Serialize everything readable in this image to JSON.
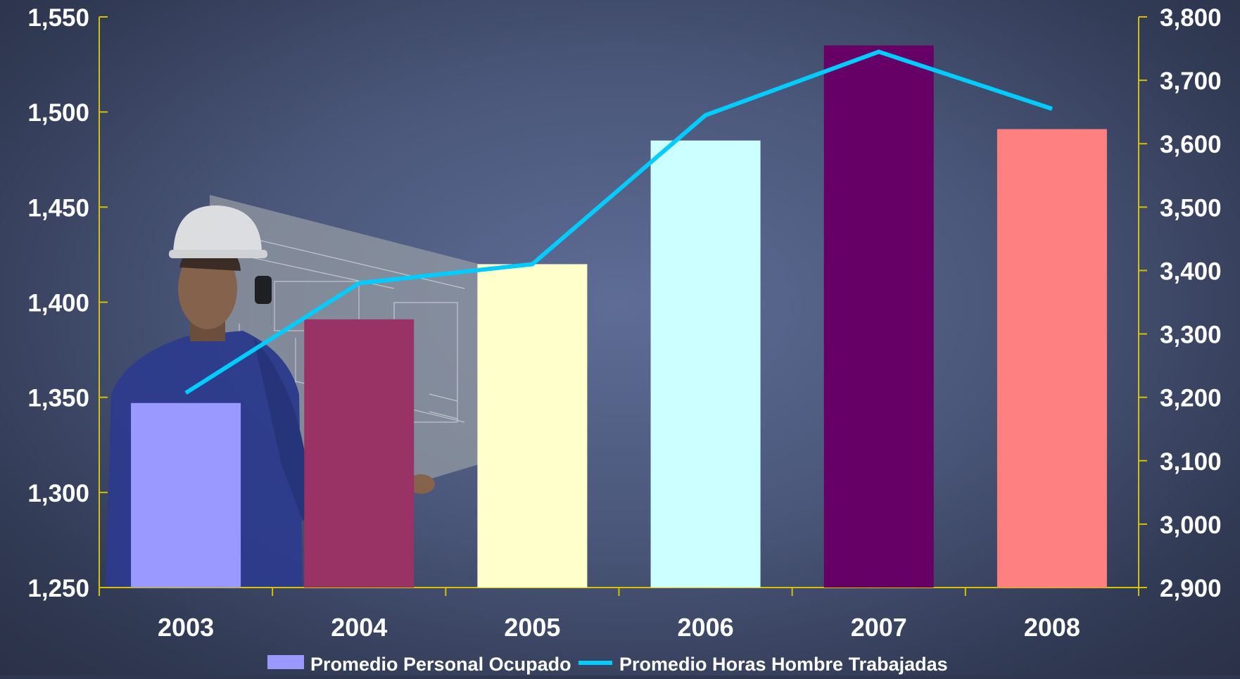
{
  "chart_data": {
    "type": "bar",
    "categories": [
      "2003",
      "2004",
      "2005",
      "2006",
      "2007",
      "2008"
    ],
    "series": [
      {
        "name": "Promedio Personal Ocupado",
        "type": "bar",
        "axis": "left",
        "values": [
          1347,
          1391,
          1420,
          1485,
          1535,
          1491
        ],
        "colors": [
          "#9999ff",
          "#993366",
          "#ffffcc",
          "#ccffff",
          "#660066",
          "#ff8080"
        ]
      },
      {
        "name": "Promedio Horas Hombre Trabajadas",
        "type": "line",
        "axis": "right",
        "values": [
          3207,
          3380,
          3410,
          3645,
          3745,
          3655
        ],
        "color": "#00ccff"
      }
    ],
    "y_left": {
      "lim": [
        1250,
        1550
      ],
      "ticks": [
        1250,
        1300,
        1350,
        1400,
        1450,
        1500,
        1550
      ],
      "tick_labels": [
        "1,250",
        "1,300",
        "1,350",
        "1,400",
        "1,450",
        "1,500",
        "1,550"
      ]
    },
    "y_right": {
      "lim": [
        2900,
        3800
      ],
      "ticks": [
        2900,
        3000,
        3100,
        3200,
        3300,
        3400,
        3500,
        3600,
        3700,
        3800
      ],
      "tick_labels": [
        "2,900",
        "3,000",
        "3,100",
        "3,200",
        "3,300",
        "3,400",
        "3,500",
        "3,600",
        "3,700",
        "3,800"
      ]
    },
    "axis_color": "#d4c200",
    "legend_position": "bottom",
    "legend": [
      {
        "label": "Promedio Personal Ocupado",
        "color": "#9999ff"
      },
      {
        "label": "Promedio Horas Hombre Trabajadas",
        "color": "#00ccff"
      }
    ],
    "grid": false
  },
  "background": {
    "image": "worker-with-blueprint-photo"
  }
}
